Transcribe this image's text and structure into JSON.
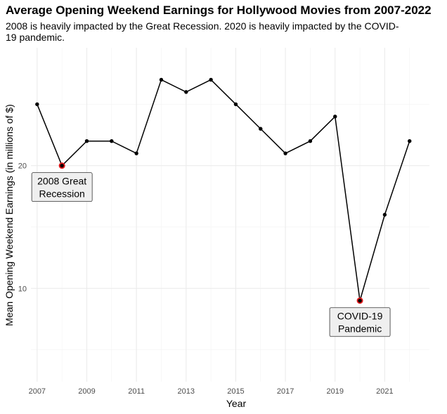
{
  "chart_data": {
    "type": "line",
    "title": "Average Opening Weekend Earnings for Hollywood Movies from 2007-2022",
    "subtitle": "2008 is heavily impacted by the Great Recession. 2020 is heavily impacted by the COVID-19 pandemic.",
    "xlabel": "Year",
    "ylabel": "Mean Opening Weekend Earnings (in millions of $)",
    "x": [
      2007,
      2008,
      2009,
      2010,
      2011,
      2012,
      2013,
      2014,
      2015,
      2016,
      2017,
      2018,
      2019,
      2020,
      2021,
      2022
    ],
    "y": [
      25,
      20,
      22,
      22,
      21,
      27,
      26,
      27,
      25,
      23,
      21,
      22,
      24,
      9,
      16,
      22
    ],
    "xlim": [
      2006.75,
      2022.8
    ],
    "ylim": [
      2.4,
      29.6
    ],
    "x_ticks": [
      2007,
      2009,
      2011,
      2013,
      2015,
      2017,
      2019,
      2021
    ],
    "y_ticks": [
      10,
      20
    ],
    "grid": true,
    "line_color": "#000000",
    "highlight_color": "#e41a1c",
    "highlights": [
      2008,
      2020
    ],
    "annotations": [
      {
        "x": 2008,
        "y": 20,
        "lines": [
          "2008 Great",
          "Recession"
        ]
      },
      {
        "x": 2020,
        "y": 9,
        "lines": [
          "COVID-19",
          "Pandemic"
        ]
      }
    ]
  }
}
